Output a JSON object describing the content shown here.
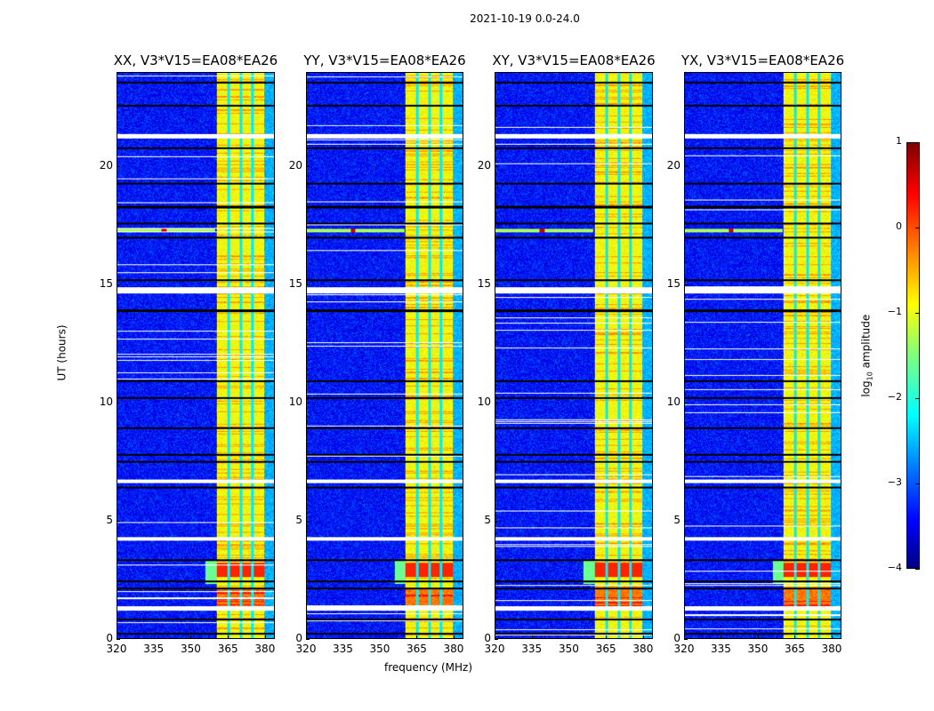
{
  "suptitle": "2021-10-19 0.0-24.0",
  "chart_data": {
    "type": "heatmap",
    "colormap": "jet",
    "xlabel": "frequency (MHz)",
    "ylabel": "UT (hours)",
    "xlim": [
      320,
      384
    ],
    "ylim": [
      0,
      24
    ],
    "xticks": [
      "320",
      "335",
      "350",
      "365",
      "380"
    ],
    "xtick_values": [
      320,
      335,
      350,
      365,
      380
    ],
    "yticks": [
      "0",
      "5",
      "10",
      "15",
      "20"
    ],
    "ytick_values": [
      0,
      5,
      10,
      15,
      20
    ],
    "panels": [
      {
        "title": "XX, V3*V15=EA08*EA26"
      },
      {
        "title": "YY, V3*V15=EA08*EA26"
      },
      {
        "title": "XY, V3*V15=EA08*EA26"
      },
      {
        "title": "YX, V3*V15=EA08*EA26"
      }
    ],
    "background_log_amplitude": -3.3,
    "band": {
      "start_mhz": 360.5,
      "end_mhz": 380,
      "log_amplitude": -0.9,
      "subband_gaps_mhz": [
        365.5,
        370.5,
        375.2
      ]
    },
    "bright_interval_ut": [
      2.6,
      3.2
    ],
    "rfi": {
      "freq_mhz": 339,
      "ut": 17.3
    },
    "flagged_ut_intervals": [
      [
        1.15,
        1.35
      ],
      [
        4.15,
        4.3
      ],
      [
        6.6,
        6.75
      ],
      [
        14.65,
        14.9
      ],
      [
        21.2,
        21.4
      ]
    ],
    "colorbar": {
      "label_prefix": "log",
      "label_sub": "10",
      "label_suffix": " amplitude",
      "range": [
        -4,
        1
      ],
      "ticks": [
        "1",
        "0",
        "−1",
        "−2",
        "−3",
        "−4"
      ],
      "tick_values": [
        1,
        0,
        -1,
        -2,
        -3,
        -4
      ]
    }
  }
}
